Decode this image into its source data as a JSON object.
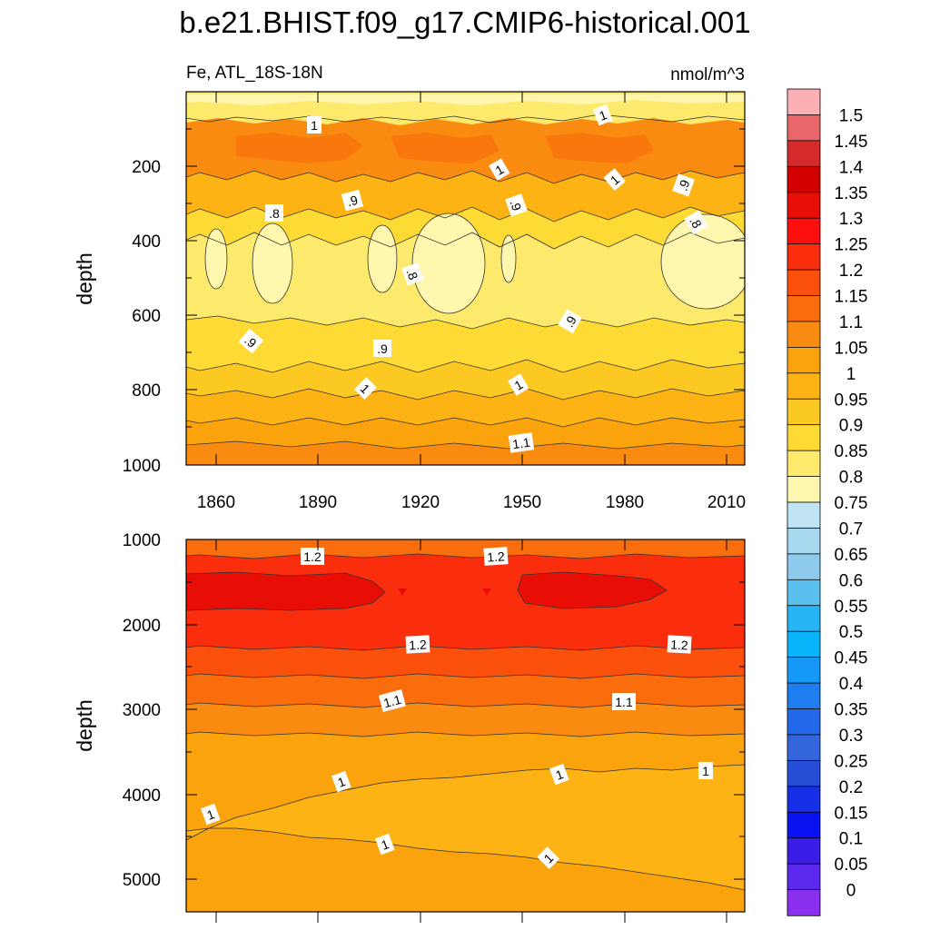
{
  "title": "b.e21.BHIST.f09_g17.CMIP6-historical.001",
  "top_panel": {
    "left_label": "Fe, ATL_18S-18N",
    "right_label": "nmol/m^3",
    "ylabel": "depth",
    "y_ticks": [
      "200",
      "400",
      "600",
      "800",
      "1000"
    ],
    "x_ticks": [
      "1860",
      "1890",
      "1920",
      "1950",
      "1980",
      "2010"
    ],
    "contour_labels": [
      "1",
      "1",
      "1",
      "1",
      ".9",
      ".8",
      ".9",
      ".9",
      ".8",
      ".9",
      ".8",
      ".9",
      ".9",
      "1",
      "1",
      "1.1"
    ]
  },
  "bottom_panel": {
    "ylabel": "depth",
    "y_ticks": [
      "1000",
      "2000",
      "3000",
      "4000",
      "5000"
    ],
    "contour_labels": [
      "1.2",
      "1.2",
      "1.2",
      "1.2",
      "1.1",
      "1.1",
      "1",
      "1",
      "1",
      "1",
      "1",
      "1"
    ]
  },
  "colorbar": {
    "labels": [
      "1.5",
      "1.45",
      "1.4",
      "1.35",
      "1.3",
      "1.25",
      "1.2",
      "1.15",
      "1.1",
      "1.05",
      "1",
      "0.95",
      "0.9",
      "0.85",
      "0.8",
      "0.75",
      "0.7",
      "0.65",
      "0.6",
      "0.55",
      "0.5",
      "0.45",
      "0.4",
      "0.35",
      "0.3",
      "0.25",
      "0.2",
      "0.15",
      "0.1",
      "0.05",
      "0"
    ],
    "colors": [
      "#fcb0b4",
      "#e8666a",
      "#d72a2a",
      "#d40000",
      "#e80e06",
      "#fe0f0d",
      "#fa2d0d",
      "#fb4f0c",
      "#fa6d0c",
      "#f98c10",
      "#fba30c",
      "#fcb313",
      "#fcc822",
      "#fedb34",
      "#fdea6c",
      "#fff7ad",
      "#c1e4f4",
      "#a7d8ee",
      "#8dcaec",
      "#5cc0ef",
      "#27b6f5",
      "#08b4fa",
      "#1698f6",
      "#1e7ef1",
      "#2469e9",
      "#3366dd",
      "#264ed6",
      "#182fe8",
      "#0a12f2",
      "#3a1ee8",
      "#5c28ee",
      "#8a30ee"
    ]
  },
  "chart_data": [
    {
      "type": "heatmap",
      "variable": "Fe, ATL_18S-18N",
      "units": "nmol/m^3",
      "ylabel": "depth",
      "xlim": [
        1850,
        2014
      ],
      "ylim": [
        0,
        1000
      ],
      "x_ticks": [
        1860,
        1890,
        1920,
        1950,
        1980,
        2010
      ],
      "y_ticks": [
        200,
        400,
        600,
        800,
        1000
      ],
      "depth_profile": [
        {
          "depth": 20,
          "value": 0.8
        },
        {
          "depth": 50,
          "value": 0.95
        },
        {
          "depth": 150,
          "value": 1.05
        },
        {
          "depth": 250,
          "value": 0.9
        },
        {
          "depth": 350,
          "value": 0.8
        },
        {
          "depth": 450,
          "value": 0.75
        },
        {
          "depth": 550,
          "value": 0.8
        },
        {
          "depth": 650,
          "value": 0.88
        },
        {
          "depth": 750,
          "value": 0.95
        },
        {
          "depth": 850,
          "value": 1.02
        },
        {
          "depth": 950,
          "value": 1.08
        }
      ]
    },
    {
      "type": "heatmap",
      "variable": "Fe, ATL_18S-18N",
      "units": "nmol/m^3",
      "ylabel": "depth",
      "xlim": [
        1850,
        2014
      ],
      "ylim": [
        1000,
        5350
      ],
      "x_ticks": [
        1860,
        1890,
        1920,
        1950,
        1980,
        2010
      ],
      "y_ticks": [
        1000,
        2000,
        3000,
        4000,
        5000
      ],
      "depth_profile": [
        {
          "depth": 1100,
          "value": 1.17
        },
        {
          "depth": 1700,
          "value": 1.27
        },
        {
          "depth": 2000,
          "value": 1.22
        },
        {
          "depth": 2400,
          "value": 1.17
        },
        {
          "depth": 2800,
          "value": 1.12
        },
        {
          "depth": 3200,
          "value": 1.07
        },
        {
          "depth": 3600,
          "value": 1.02
        },
        {
          "depth": 4200,
          "value": 0.97
        },
        {
          "depth": 4800,
          "value": 0.98
        },
        {
          "depth": 5200,
          "value": 1.0
        }
      ]
    }
  ]
}
